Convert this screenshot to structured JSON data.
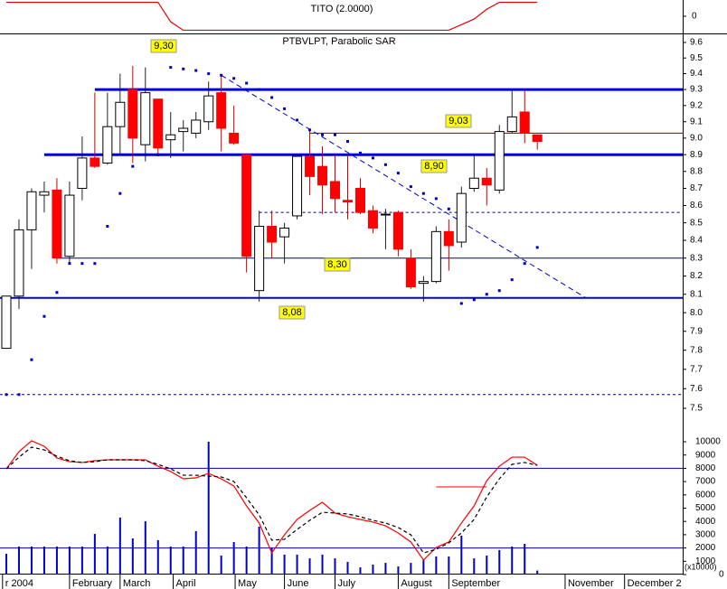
{
  "chart_data": [
    {
      "type": "line",
      "title": "TITO (2.0000)",
      "color": "#e00000",
      "values": [
        1,
        1,
        1,
        1,
        1,
        1,
        1,
        1,
        1,
        1,
        1,
        1,
        1,
        -0.4,
        -1,
        -1,
        -1,
        -1,
        -1,
        -1,
        -1,
        -1,
        -1,
        -1,
        -1,
        -1,
        -1,
        -1,
        -1,
        -1,
        -1,
        -1,
        -1,
        -1,
        -1,
        -1,
        -0.6,
        -0.2,
        0.5,
        1,
        1,
        1,
        1
      ],
      "xlim": [
        -0.5,
        53.5
      ],
      "ylim": [
        -1.1,
        1.1
      ],
      "yticks": [
        0
      ]
    },
    {
      "type": "candlestick",
      "title": "PTBVLPT, Parabolic SAR",
      "log_scale": true,
      "up_color": "#ffffff",
      "down_color": "#ff0000",
      "open": [
        7.81,
        8.09,
        8.46,
        8.66,
        8.69,
        8.31,
        8.7,
        8.88,
        8.85,
        9.07,
        9.3,
        8.96,
        9.24,
        8.99,
        9.04,
        9.03,
        9.1,
        9.28,
        9.03,
        8.9,
        8.12,
        8.48,
        8.42,
        8.54,
        8.89,
        8.83,
        8.74,
        8.63,
        8.7,
        8.57,
        8.55,
        8.56,
        8.3,
        8.16,
        8.17,
        8.45,
        8.39,
        8.7,
        8.76,
        8.69,
        9.04,
        9.16,
        9.02
      ],
      "high": [
        8.09,
        8.52,
        8.7,
        8.74,
        8.76,
        8.74,
        9.01,
        9.28,
        9.28,
        9.4,
        9.45,
        9.44,
        9.24,
        9.16,
        9.11,
        9.16,
        9.35,
        9.39,
        9.2,
        8.9,
        8.57,
        8.57,
        8.5,
        8.9,
        9.05,
        8.95,
        8.9,
        8.9,
        8.76,
        8.6,
        8.58,
        8.57,
        8.35,
        8.2,
        8.48,
        8.52,
        8.71,
        8.9,
        8.82,
        9.08,
        9.3,
        9.3,
        9.02
      ],
      "low": [
        7.81,
        8.02,
        8.24,
        8.56,
        8.27,
        8.27,
        8.63,
        8.82,
        8.84,
        8.9,
        8.85,
        8.86,
        8.89,
        8.88,
        8.92,
        9.0,
        9.05,
        8.92,
        8.96,
        8.22,
        8.06,
        8.3,
        8.27,
        8.52,
        8.66,
        8.55,
        8.56,
        8.52,
        8.55,
        8.44,
        8.35,
        8.31,
        8.13,
        8.06,
        8.16,
        8.23,
        8.36,
        8.68,
        8.6,
        8.67,
        9.03,
        8.97,
        8.93
      ],
      "close": [
        8.09,
        8.46,
        8.68,
        8.68,
        8.3,
        8.66,
        8.88,
        8.83,
        9.07,
        9.22,
        9.0,
        9.28,
        8.94,
        9.02,
        9.06,
        9.11,
        9.26,
        9.06,
        8.97,
        8.31,
        8.48,
        8.39,
        8.47,
        8.89,
        8.77,
        8.72,
        8.64,
        8.62,
        8.56,
        8.47,
        8.55,
        8.35,
        8.14,
        8.17,
        8.45,
        8.37,
        8.67,
        8.76,
        8.72,
        9.04,
        9.13,
        9.03,
        8.98
      ],
      "sar": {
        "color": "#0000cc",
        "values": [
          7.57,
          7.57,
          7.75,
          7.98,
          8.11,
          8.27,
          8.27,
          8.27,
          8.48,
          8.67,
          8.83,
          8.9,
          8.9,
          9.44,
          9.43,
          9.42,
          9.4,
          9.39,
          9.37,
          9.34,
          9.3,
          9.25,
          9.18,
          9.11,
          9.05,
          9.02,
          9.02,
          8.98,
          8.91,
          8.88,
          8.84,
          8.79,
          8.71,
          8.67,
          8.64,
          8.58,
          8.05,
          8.07,
          8.1,
          8.12,
          8.18,
          8.27,
          8.36
        ]
      },
      "levels": [
        {
          "value": 9.3,
          "label": "9,30",
          "from": 7,
          "style": "thick",
          "color": "#0000dd"
        },
        {
          "value": 9.03,
          "label": "9,03",
          "from": 24,
          "style": "thin",
          "color": "#800000"
        },
        {
          "value": 8.9,
          "label": "8,90",
          "from": 3,
          "style": "thick",
          "color": "#0000dd"
        },
        {
          "value": 8.56,
          "from": 20,
          "style": "dashed",
          "color": "#000080"
        },
        {
          "value": 8.3,
          "label": "8,30",
          "from": 4,
          "style": "thin",
          "color": "#000080"
        },
        {
          "value": 8.08,
          "label": "8,08",
          "from": -0.5,
          "style": "medium",
          "color": "#0000dd"
        },
        {
          "value": 7.57,
          "from": -0.5,
          "style": "dashed",
          "color": "#000080"
        }
      ],
      "label_color": "#ffff00",
      "trend_line": {
        "x": [
          17,
          45.85
        ],
        "y": [
          9.39,
          8.08
        ],
        "color": "#0000cc"
      },
      "xlim": [
        -0.5,
        53.5
      ],
      "ylim": [
        7.5,
        9.6
      ],
      "yticks": [
        7.5,
        7.6,
        7.7,
        7.8,
        7.9,
        {
          "value": 8,
          "label": "8.0"
        },
        8.1,
        8.2,
        8.3,
        8.4,
        8.5,
        8.6,
        8.7,
        8.8,
        8.9,
        {
          "value": 9,
          "label": "9.0"
        },
        9.1,
        9.2,
        9.3,
        9.4,
        9.5,
        9.6
      ]
    },
    {
      "type": "bar",
      "color": "#0000cc",
      "values": [
        1560,
        2110,
        2110,
        2110,
        2110,
        2110,
        2110,
        3060,
        2110,
        4290,
        2720,
        4010,
        2590,
        2110,
        2110,
        3270,
        10000,
        1430,
        2450,
        2110,
        3610,
        2040,
        1500,
        1500,
        1220,
        1500,
        1220,
        950,
        540,
        750,
        880,
        610,
        880,
        1160,
        1360,
        1360,
        2930,
        1220,
        1430,
        1840,
        2110,
        2310,
        300
      ],
      "lines": [
        {
          "color": "#ff0000",
          "dashed": false,
          "values": [
            7960,
            9250,
            10070,
            9660,
            8780,
            8500,
            8440,
            8570,
            8640,
            8640,
            8640,
            8640,
            8160,
            7760,
            7210,
            7280,
            7620,
            7210,
            6670,
            5170,
            3880,
            1630,
            2990,
            4150,
            4830,
            5440,
            4630,
            4350,
            4150,
            3950,
            3670,
            3130,
            2450,
            1090,
            2040,
            2450,
            3880,
            5170,
            7070,
            8160,
            8840,
            8840,
            8230
          ]
        },
        {
          "color": "#000000",
          "dashed": true,
          "values": [
            7960,
            8840,
            9590,
            9390,
            8910,
            8570,
            8440,
            8500,
            8640,
            8640,
            8640,
            8570,
            8300,
            7960,
            7480,
            7480,
            7410,
            7350,
            7010,
            5780,
            4490,
            2590,
            2650,
            3400,
            4080,
            4690,
            4630,
            4560,
            4350,
            4080,
            3880,
            3540,
            2990,
            1630,
            1900,
            2380,
            3130,
            4150,
            5850,
            7210,
            8300,
            8440,
            8230
          ]
        }
      ],
      "ref_lines": [
        8000,
        2000
      ],
      "marker_line": {
        "value": 6600,
        "from": 34,
        "to": 38,
        "color": "#ff0000"
      },
      "unit_label": "(x10000)",
      "xlim": [
        -0.5,
        53.5
      ],
      "ylim": [
        0,
        10000
      ],
      "yticks": [
        0,
        1000,
        2000,
        3000,
        4000,
        5000,
        6000,
        7000,
        8000,
        9000,
        10000
      ],
      "xticks": [
        {
          "value": -0.3,
          "label": "r 2004"
        },
        {
          "value": 5,
          "label": "February"
        },
        {
          "value": 9,
          "label": "March"
        },
        {
          "value": 13.2,
          "label": "April"
        },
        {
          "value": 18.1,
          "label": "May"
        },
        {
          "value": 22,
          "label": "June"
        },
        {
          "value": 26,
          "label": "July"
        },
        {
          "value": 31,
          "label": "August"
        },
        {
          "value": 35,
          "label": "September"
        },
        {
          "value": 44.2,
          "label": "November"
        },
        {
          "value": 48.9,
          "label": "December 2"
        }
      ]
    }
  ]
}
